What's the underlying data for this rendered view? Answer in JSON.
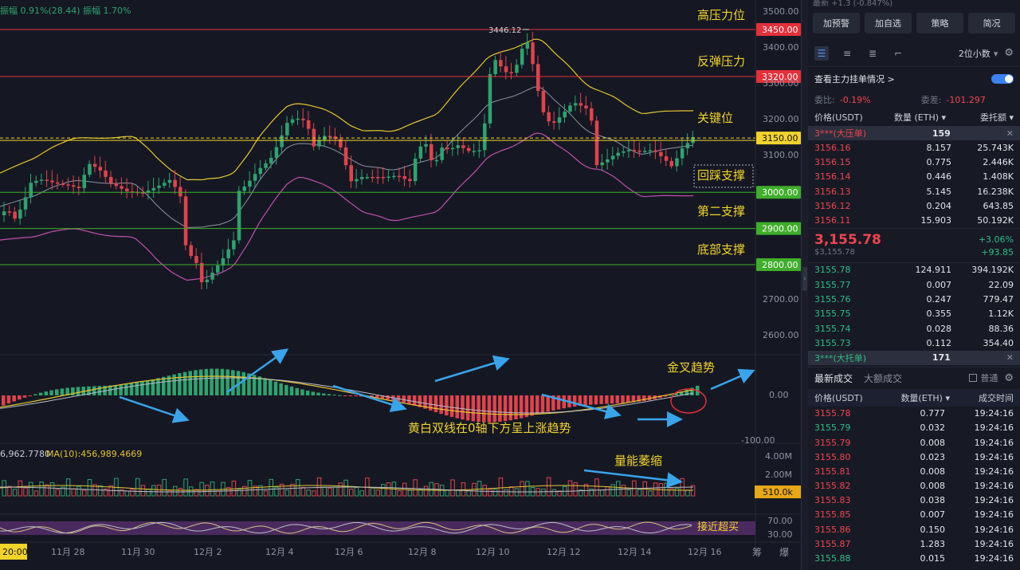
{
  "chart": {
    "header_text": "振幅 0.91%(28.44) 振幅 1.70%",
    "ma_text": "6,962.7780",
    "ma10_text": "MA(10):456,989.4669",
    "top_right_text": "3500.00",
    "price_ticks": [
      "3500.00",
      "3400.00",
      "3300.00",
      "3200.00",
      "3100.00",
      "2700.00",
      "2600.00"
    ],
    "price_tags": [
      {
        "text": "3450.00",
        "color": "#e5303a",
        "text_color": "#ffffff"
      },
      {
        "text": "3320.00",
        "color": "#e5303a",
        "text_color": "#ffffff"
      },
      {
        "text": "3150.00",
        "color": "#f2d32b",
        "text_color": "#111111"
      },
      {
        "text": "3000.00",
        "color": "#3fae2a",
        "text_color": "#ffffff"
      },
      {
        "text": "2900.00",
        "color": "#3fae2a",
        "text_color": "#ffffff"
      },
      {
        "text": "2800.00",
        "color": "#3fae2a",
        "text_color": "#ffffff"
      }
    ],
    "high_marker": "3446.12",
    "annotations": {
      "high_pressure": "高压力位",
      "rebound_pressure": "反弹压力",
      "key_level": "关键位",
      "pullback_support": "回踩支撑",
      "second_support": "第二支撑",
      "bottom_support": "底部支撑",
      "golden_cross": "金叉趋势",
      "macd_note": "黄白双线在0轴下方呈上涨趋势",
      "volume_shrink": "量能萎缩",
      "near_overbought": "接近超买"
    },
    "macd_ticks": [
      "0.00",
      "-100.00"
    ],
    "volume_ticks": [
      "4.00M",
      "2.00M"
    ],
    "volume_tag": "510.0k",
    "rsi_ticks": [
      "70.00",
      "30.00"
    ],
    "time_start": "20:00",
    "x_labels": [
      "11月 28",
      "11月 30",
      "12月 2",
      "12月 4",
      "12月 6",
      "12月 8",
      "12月 10",
      "12月 12",
      "12月 14",
      "12月 16"
    ],
    "corner_labels": [
      "筹",
      "爆"
    ]
  },
  "panel": {
    "top_strip_text": "最新   +1.3 (-0.847%)",
    "buttons": [
      "加预警",
      "加自选",
      "策略",
      "简况"
    ],
    "decimal_label": "2位小数",
    "main_order_label": "查看主力挂单情况 >",
    "ratio_label": "委比:",
    "ratio_value": "-0.19%",
    "diff_label": "委差:",
    "diff_value": "-101.297",
    "book_headers": {
      "price": "价格(USDT)",
      "qty": "数量 (ETH)",
      "amt": "委托额"
    },
    "big_sell": {
      "name": "3***(大压单)",
      "qty": "159"
    },
    "asks": [
      {
        "price": "3156.16",
        "qty": "8.157",
        "amt": "25.743K"
      },
      {
        "price": "3156.15",
        "qty": "0.775",
        "amt": "2.446K"
      },
      {
        "price": "3156.14",
        "qty": "0.446",
        "amt": "1.408K"
      },
      {
        "price": "3156.13",
        "qty": "5.145",
        "amt": "16.238K"
      },
      {
        "price": "3156.12",
        "qty": "0.204",
        "amt": "643.85"
      },
      {
        "price": "3156.11",
        "qty": "15.903",
        "amt": "50.192K"
      }
    ],
    "last_price": "3,155.78",
    "last_sub": "$3,155.78",
    "change_pct": "+3.06%",
    "change_abs": "+93.85",
    "bids": [
      {
        "price": "3155.78",
        "qty": "124.911",
        "amt": "394.192K"
      },
      {
        "price": "3155.77",
        "qty": "0.007",
        "amt": "22.09"
      },
      {
        "price": "3155.76",
        "qty": "0.247",
        "amt": "779.47"
      },
      {
        "price": "3155.75",
        "qty": "0.355",
        "amt": "1.12K"
      },
      {
        "price": "3155.74",
        "qty": "0.028",
        "amt": "88.36"
      },
      {
        "price": "3155.73",
        "qty": "0.112",
        "amt": "354.40"
      }
    ],
    "big_buy": {
      "name": "3***(大托单)",
      "qty": "171"
    },
    "trade_tabs": {
      "latest": "最新成交",
      "large": "大额成交",
      "normal": "普通"
    },
    "trade_headers": {
      "price": "价格(USDT)",
      "qty": "数量(ETH)",
      "time": "成交时间"
    },
    "trades": [
      {
        "price": "3155.78",
        "qty": "0.777",
        "time": "19:24:16",
        "side": "sell"
      },
      {
        "price": "3155.79",
        "qty": "0.032",
        "time": "19:24:16",
        "side": "buy"
      },
      {
        "price": "3155.79",
        "qty": "0.008",
        "time": "19:24:16",
        "side": "sell"
      },
      {
        "price": "3155.80",
        "qty": "0.023",
        "time": "19:24:16",
        "side": "sell"
      },
      {
        "price": "3155.81",
        "qty": "0.008",
        "time": "19:24:16",
        "side": "sell"
      },
      {
        "price": "3155.82",
        "qty": "0.008",
        "time": "19:24:16",
        "side": "sell"
      },
      {
        "price": "3155.83",
        "qty": "0.038",
        "time": "19:24:16",
        "side": "sell"
      },
      {
        "price": "3155.85",
        "qty": "0.007",
        "time": "19:24:16",
        "side": "sell"
      },
      {
        "price": "3155.86",
        "qty": "0.150",
        "time": "19:24:16",
        "side": "sell"
      },
      {
        "price": "3155.87",
        "qty": "1.283",
        "time": "19:24:16",
        "side": "sell"
      },
      {
        "price": "3155.88",
        "qty": "0.015",
        "time": "19:24:16",
        "side": "buy"
      }
    ]
  }
}
